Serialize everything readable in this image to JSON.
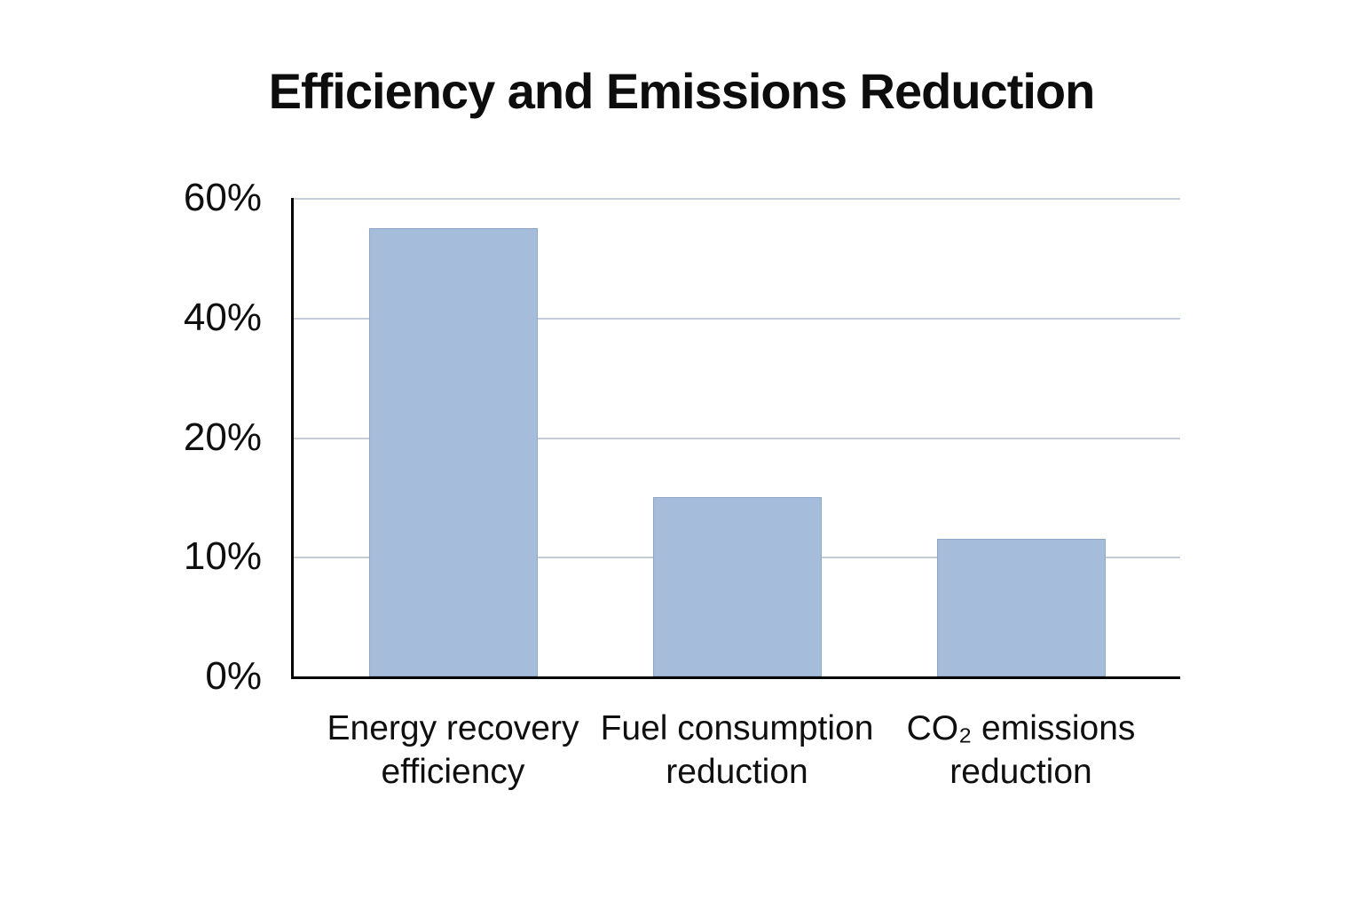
{
  "page": {
    "background": "#ffffff"
  },
  "chart_data": {
    "type": "bar",
    "title": "Efficiency and Emissions Reduction",
    "categories": [
      "Energy recovery\nefficiency",
      "Fuel consumption\nreduction",
      "CO₂ emissions\nreduction"
    ],
    "values": [
      55,
      15,
      11.5
    ],
    "unit": "%",
    "xlabel": "",
    "ylabel": "",
    "y_ticks": [
      {
        "value": 0,
        "label": "0%"
      },
      {
        "value": 10,
        "label": "10%"
      },
      {
        "value": 20,
        "label": "20%"
      },
      {
        "value": 40,
        "label": "40%"
      },
      {
        "value": 60,
        "label": "60%"
      }
    ],
    "axis_scale_note": "non-linear axis: tick values 0,10,20,40,60 rendered at equal vertical spacing",
    "grid": true,
    "legend": false,
    "colors": {
      "bar_fill": "#a5bcdb",
      "bar_border": "#8fa7c6",
      "gridline": "#c4cdd9",
      "axis": "#000000",
      "text": "#0f0f0f",
      "background": "#ffffff"
    }
  }
}
